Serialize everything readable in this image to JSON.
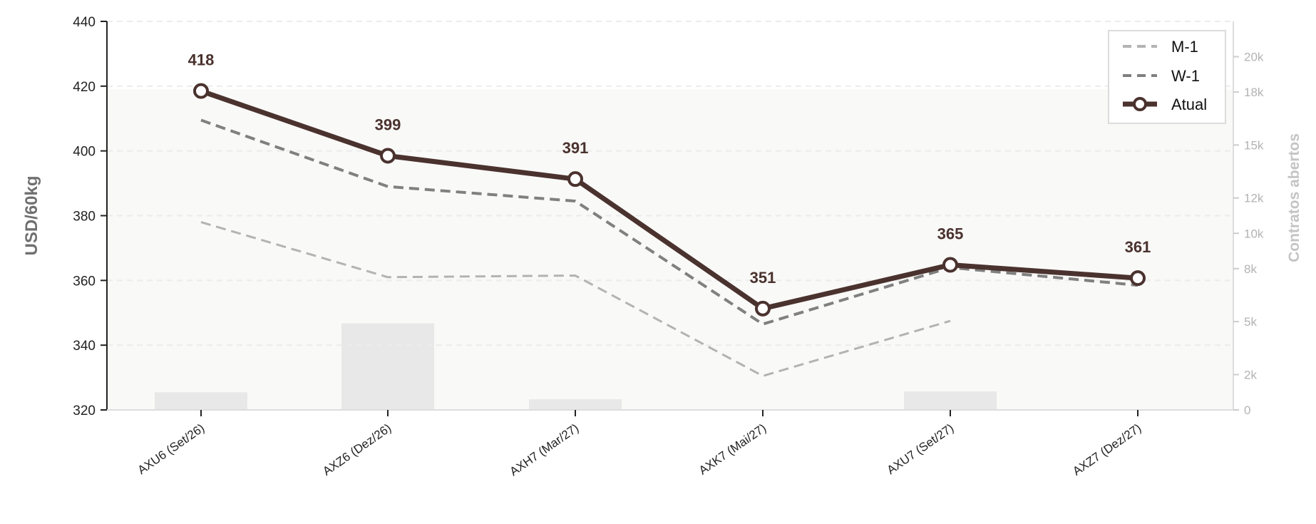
{
  "chart_data": {
    "type": "line",
    "categories": [
      "AXU6 (Set/26)",
      "AXZ6 (Dez/26)",
      "AXH7 (Mar/27)",
      "AXK7 (Mai/27)",
      "AXU7 (Set/27)",
      "AXZ7 (Dez/27)"
    ],
    "ylabel": "USD/60kg",
    "y2label": "Contratos abertos",
    "ylim": [
      320,
      440
    ],
    "y2lim": [
      0,
      22000
    ],
    "yticks": [
      320,
      340,
      360,
      380,
      400,
      420,
      440
    ],
    "y2ticks": [
      0,
      2000,
      5000,
      8000,
      10000,
      12000,
      15000,
      18000,
      20000
    ],
    "y2tick_labels": [
      "0",
      "2k",
      "5k",
      "8k",
      "10k",
      "12k",
      "15k",
      "18k",
      "20k"
    ],
    "grid": "horizontal dashed",
    "legend_position": "top-right",
    "series": [
      {
        "name": "M-1",
        "style": "dashed",
        "color": "#b3b3b3",
        "values": [
          378,
          361,
          361.5,
          330.5,
          347.5,
          null
        ]
      },
      {
        "name": "W-1",
        "style": "dashed",
        "color": "#808080",
        "values": [
          409.5,
          389,
          384.5,
          346.5,
          364,
          358.5
        ]
      },
      {
        "name": "Atual",
        "style": "solid-markers",
        "color": "#4a322e",
        "values": [
          418.5,
          398.5,
          391.3,
          351.3,
          364.8,
          360.7
        ]
      }
    ],
    "data_labels": [
      "418",
      "399",
      "391",
      "351",
      "365",
      "361"
    ],
    "open_interest": [
      1000,
      4900,
      600,
      0,
      1050,
      0
    ]
  }
}
